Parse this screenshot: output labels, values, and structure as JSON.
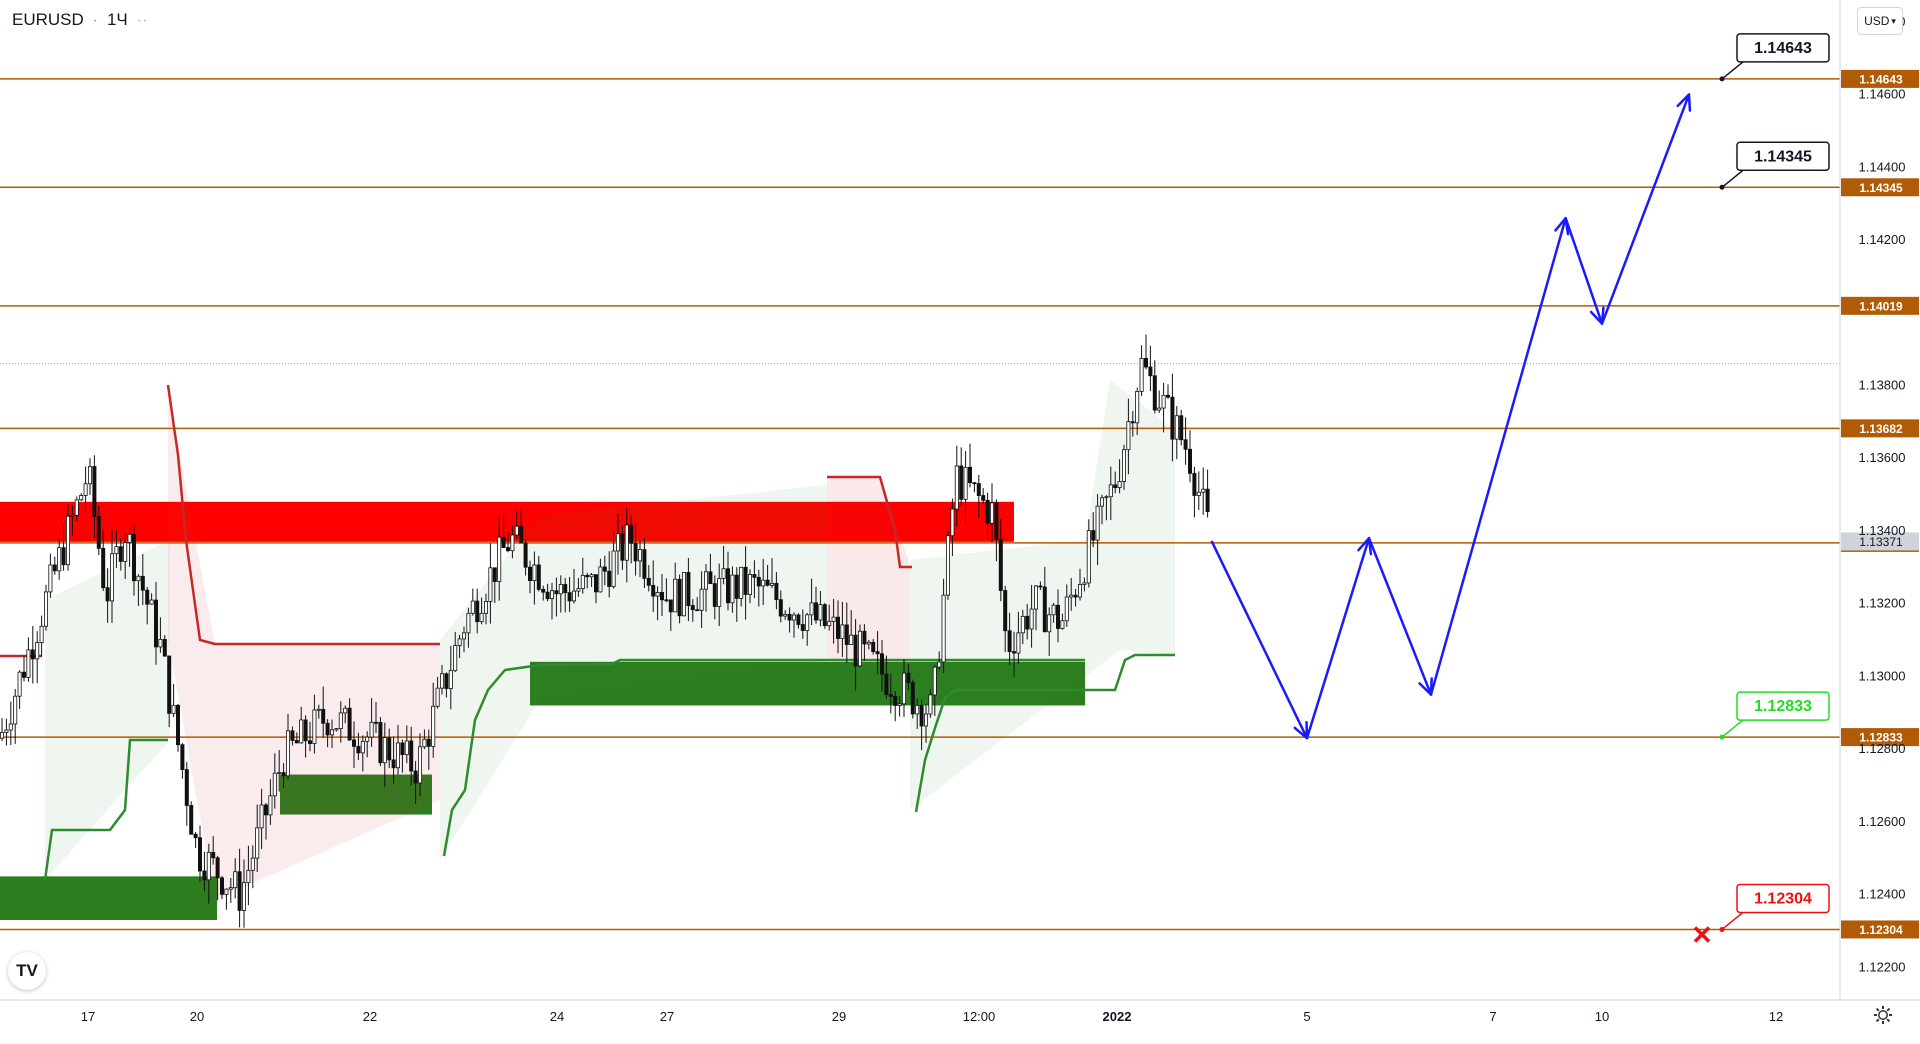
{
  "header": {
    "symbol": "EURUSD",
    "separator": "·",
    "interval": "1Ч",
    "dots": "··"
  },
  "currency_button": {
    "label": "USD",
    "icon": "chevron-down-icon"
  },
  "logo": {
    "text": "TV",
    "icon": "tradingview-logo-icon"
  },
  "settings": {
    "icon": "gear-icon"
  },
  "colors": {
    "level_line": "#b25b06",
    "level_label_bg": "#b25b06",
    "resistance_zone": "#ff0000",
    "support_zone": "#2d7d1f",
    "forecast_arrow": "#1a1aff",
    "supertrend_down": "#c62828",
    "supertrend_up": "#2e8b2e",
    "candle": "#111111",
    "target_green": "#22dd22",
    "stop_red": "#ee1111"
  },
  "chart_data": {
    "type": "line",
    "title": "",
    "symbol": "EURUSD",
    "interval": "1Ч",
    "xlabel": "",
    "ylabel": "",
    "y_axis_side": "right",
    "ylim": [
      1.1211,
      1.1486
    ],
    "y_ticks": [
      "1.14800",
      "1.14600",
      "1.14400",
      "1.14200",
      "1.13800",
      "1.13600",
      "1.13400",
      "1.13200",
      "1.13000",
      "1.12800",
      "1.12600",
      "1.12400",
      "1.12200"
    ],
    "x_ticks": [
      "17",
      "20",
      "22",
      "24",
      "27",
      "29",
      "12:00",
      "2022",
      "5",
      "7",
      "10",
      "12"
    ],
    "horizontal_levels": [
      "1.14643",
      "1.14345",
      "1.14019",
      "1.13682",
      "1.13367",
      "1.12833",
      "1.12304"
    ],
    "current_price": "1.13371",
    "zones": [
      {
        "kind": "resistance",
        "from": 1.1337,
        "to": 1.1348
      },
      {
        "kind": "support",
        "from": 1.1292,
        "to": 1.1304
      }
    ],
    "series": [
      {
        "kind": "price",
        "points": [
          [
            "Dec 16",
            1.1283
          ],
          [
            "Dec 17",
            1.1356
          ],
          [
            "Dec 17 12:00",
            1.1322
          ],
          [
            "Dec 18",
            1.1341
          ],
          [
            "Dec 19",
            1.1308
          ],
          [
            "Dec 20",
            1.1252
          ],
          [
            "Dec 20 12:00",
            1.124
          ],
          [
            "Dec 21",
            1.1278
          ],
          [
            "Dec 21 12:00",
            1.1289
          ],
          [
            "Dec 22",
            1.1283
          ],
          [
            "Dec 22 12:00",
            1.1275
          ],
          [
            "Dec 23",
            1.1314
          ],
          [
            "Dec 23 12:00",
            1.1338
          ],
          [
            "Dec 24",
            1.1323
          ],
          [
            "Dec 25",
            1.1325
          ],
          [
            "Dec 26",
            1.1338
          ],
          [
            "Dec 27",
            1.1322
          ],
          [
            "Dec 28",
            1.1325
          ],
          [
            "Dec 29",
            1.1312
          ],
          [
            "Dec 29 12:00",
            1.13
          ],
          [
            "Dec 30",
            1.129
          ],
          [
            "Dec 30 06:00",
            1.1355
          ],
          [
            "Dec 30 18:00",
            1.1345
          ],
          [
            "Dec 31",
            1.1308
          ],
          [
            "Dec 31 12:00",
            1.132
          ],
          [
            "Jan 1",
            1.1315
          ],
          [
            "Jan 2",
            1.1355
          ],
          [
            "Jan 2 06:00",
            1.1386
          ],
          [
            "Jan 2 18:00",
            1.1362
          ],
          [
            "Jan 3",
            1.1337
          ]
        ]
      },
      {
        "kind": "forecast",
        "points": [
          [
            "Jan 3",
            1.1337
          ],
          [
            "Jan 4",
            1.1283
          ],
          [
            "Jan 5",
            1.1338
          ],
          [
            "Jan 6",
            1.1295
          ],
          [
            "Jan 9",
            1.1426
          ],
          [
            "Jan 10",
            1.1397
          ],
          [
            "Jan 11",
            1.146
          ]
        ]
      }
    ],
    "callouts": [
      {
        "label": "1.14643",
        "style": "black"
      },
      {
        "label": "1.14345",
        "style": "black"
      },
      {
        "label": "1.12833",
        "style": "green"
      },
      {
        "label": "1.12304",
        "style": "red"
      }
    ]
  }
}
